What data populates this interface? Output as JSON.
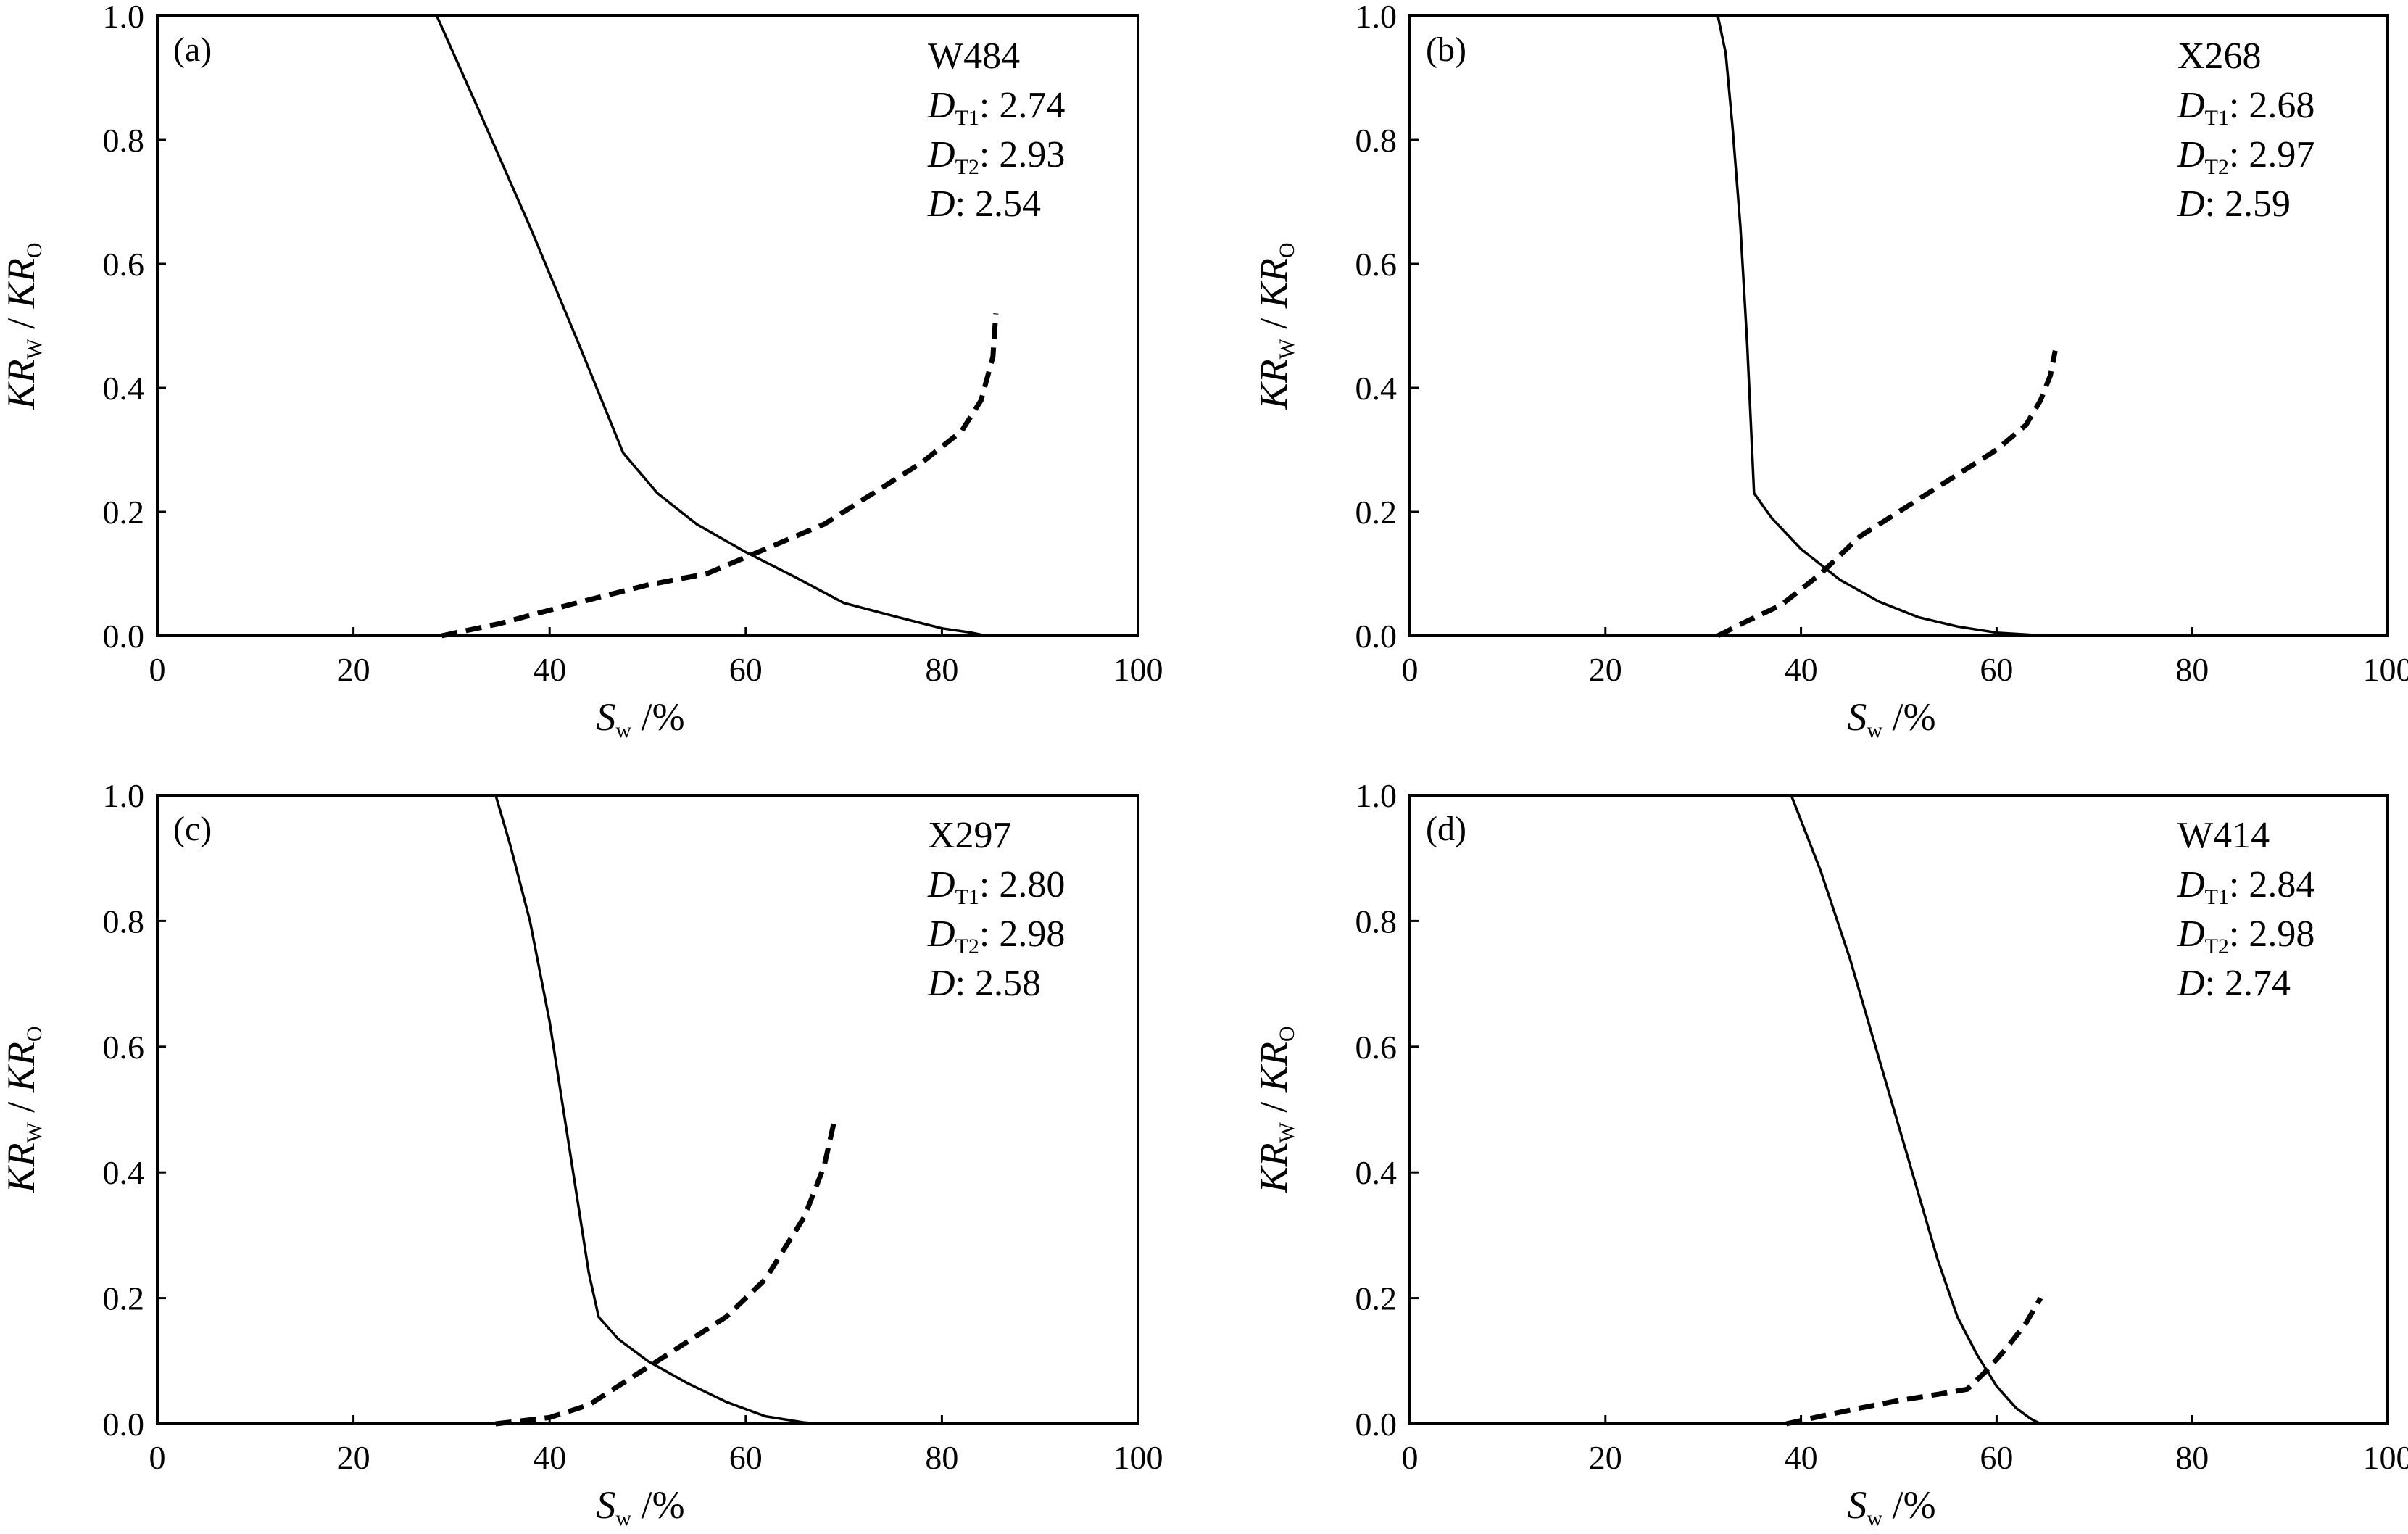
{
  "figure": {
    "style": {
      "kro_line": "solid black",
      "krw_line": "dashed black"
    }
  },
  "chart_data": [
    {
      "type": "line",
      "panel_label": "(a)",
      "well": "W484",
      "params": [
        {
          "sym": "D",
          "sub": "T1",
          "value": "2.74"
        },
        {
          "sym": "D",
          "sub": "T2",
          "value": "2.93"
        },
        {
          "sym": "D",
          "sub": "",
          "value": "2.54"
        }
      ],
      "xlabel": {
        "main": "S",
        "sub": "w",
        "unit": "/%"
      },
      "ylabel": {
        "main": "KR",
        "sub": "W",
        "sep": "/",
        "main2": "KR",
        "sub2": "O"
      },
      "xlim": [
        0,
        100
      ],
      "ylim": [
        0,
        1.0
      ],
      "xticks": [
        "0",
        "20",
        "40",
        "60",
        "80",
        "100"
      ],
      "yticks": [
        "0.0",
        "0.2",
        "0.4",
        "0.6",
        "0.8",
        "1.0"
      ],
      "grid": false,
      "series": [
        {
          "style": "solid",
          "x": [
            28.5,
            33,
            38,
            43,
            47.5,
            51,
            55,
            60,
            65,
            70,
            75,
            80,
            83,
            84.5
          ],
          "y": [
            1.0,
            0.84,
            0.66,
            0.47,
            0.295,
            0.23,
            0.18,
            0.135,
            0.095,
            0.053,
            0.032,
            0.012,
            0.005,
            0.0
          ]
        },
        {
          "style": "dashed",
          "x": [
            29,
            35,
            42,
            50,
            56,
            62,
            68,
            73,
            78,
            82,
            84,
            85.2,
            85.5
          ],
          "y": [
            0.0,
            0.02,
            0.05,
            0.082,
            0.1,
            0.14,
            0.18,
            0.23,
            0.28,
            0.33,
            0.38,
            0.45,
            0.52
          ]
        }
      ]
    },
    {
      "type": "line",
      "panel_label": "(b)",
      "well": "X268",
      "params": [
        {
          "sym": "D",
          "sub": "T1",
          "value": "2.68"
        },
        {
          "sym": "D",
          "sub": "T2",
          "value": "2.97"
        },
        {
          "sym": "D",
          "sub": "",
          "value": "2.59"
        }
      ],
      "xlabel": {
        "main": "S",
        "sub": "w",
        "unit": "/%"
      },
      "ylabel": {
        "main": "KR",
        "sub": "W",
        "sep": "/",
        "main2": "KR",
        "sub2": "O"
      },
      "xlim": [
        0,
        100
      ],
      "ylim": [
        0,
        1.0
      ],
      "xticks": [
        "0",
        "20",
        "40",
        "60",
        "80",
        "100"
      ],
      "yticks": [
        "0.0",
        "0.2",
        "0.4",
        "0.6",
        "0.8",
        "1.0"
      ],
      "grid": false,
      "series": [
        {
          "style": "solid",
          "x": [
            31.5,
            32.3,
            33,
            33.8,
            34.5,
            35.2,
            37,
            40,
            44,
            48,
            52,
            56,
            60,
            63,
            65
          ],
          "y": [
            1.0,
            0.94,
            0.82,
            0.66,
            0.47,
            0.23,
            0.19,
            0.14,
            0.09,
            0.055,
            0.03,
            0.015,
            0.005,
            0.002,
            0.0
          ]
        },
        {
          "style": "dashed",
          "x": [
            31.5,
            34,
            38,
            42,
            46,
            50,
            55,
            60,
            63,
            64.5,
            65.5,
            66
          ],
          "y": [
            0.0,
            0.02,
            0.05,
            0.1,
            0.16,
            0.2,
            0.25,
            0.3,
            0.34,
            0.38,
            0.42,
            0.46
          ]
        }
      ]
    },
    {
      "type": "line",
      "panel_label": "(c)",
      "well": "X297",
      "params": [
        {
          "sym": "D",
          "sub": "T1",
          "value": "2.80"
        },
        {
          "sym": "D",
          "sub": "T2",
          "value": "2.98"
        },
        {
          "sym": "D",
          "sub": "",
          "value": "2.58"
        }
      ],
      "xlabel": {
        "main": "S",
        "sub": "w",
        "unit": "/%"
      },
      "ylabel": {
        "main": "KR",
        "sub": "W",
        "sep": "/",
        "main2": "KR",
        "sub2": "O"
      },
      "xlim": [
        0,
        100
      ],
      "ylim": [
        0,
        1.0
      ],
      "xticks": [
        "0",
        "20",
        "40",
        "60",
        "80",
        "100"
      ],
      "yticks": [
        "0.0",
        "0.2",
        "0.4",
        "0.6",
        "0.8",
        "1.0"
      ],
      "grid": false,
      "series": [
        {
          "style": "solid",
          "x": [
            34.5,
            36,
            38,
            40,
            42,
            44,
            45,
            47,
            50,
            54,
            58,
            62,
            66,
            67.5
          ],
          "y": [
            1.0,
            0.92,
            0.8,
            0.64,
            0.44,
            0.24,
            0.17,
            0.135,
            0.1,
            0.065,
            0.035,
            0.012,
            0.002,
            0.0
          ]
        },
        {
          "style": "dashed",
          "x": [
            34.5,
            40,
            44,
            48,
            52,
            55,
            58,
            60,
            62,
            64,
            66,
            68,
            69
          ],
          "y": [
            0.0,
            0.01,
            0.03,
            0.07,
            0.11,
            0.14,
            0.17,
            0.2,
            0.23,
            0.28,
            0.33,
            0.41,
            0.48
          ]
        }
      ]
    },
    {
      "type": "line",
      "panel_label": "(d)",
      "well": "W414",
      "params": [
        {
          "sym": "D",
          "sub": "T1",
          "value": "2.84"
        },
        {
          "sym": "D",
          "sub": "T2",
          "value": "2.98"
        },
        {
          "sym": "D",
          "sub": "",
          "value": "2.74"
        }
      ],
      "xlabel": {
        "main": "S",
        "sub": "w",
        "unit": "/%"
      },
      "ylabel": {
        "main": "KR",
        "sub": "W",
        "sep": "/",
        "main2": "KR",
        "sub2": "O"
      },
      "xlim": [
        0,
        100
      ],
      "ylim": [
        0,
        1.0
      ],
      "xticks": [
        "0",
        "20",
        "40",
        "60",
        "80",
        "100"
      ],
      "yticks": [
        "0.0",
        "0.2",
        "0.4",
        "0.6",
        "0.8",
        "1.0"
      ],
      "grid": false,
      "series": [
        {
          "style": "solid",
          "x": [
            39,
            42,
            45,
            48,
            51,
            54,
            56,
            58,
            60,
            62,
            63.5,
            64.5
          ],
          "y": [
            1.0,
            0.88,
            0.74,
            0.58,
            0.42,
            0.26,
            0.17,
            0.11,
            0.06,
            0.025,
            0.008,
            0.0
          ]
        },
        {
          "style": "dashed",
          "x": [
            38.5,
            42,
            46,
            50,
            54,
            57,
            59,
            61,
            63,
            64.5
          ],
          "y": [
            0.0,
            0.012,
            0.025,
            0.037,
            0.047,
            0.055,
            0.085,
            0.12,
            0.16,
            0.2
          ]
        }
      ]
    }
  ]
}
